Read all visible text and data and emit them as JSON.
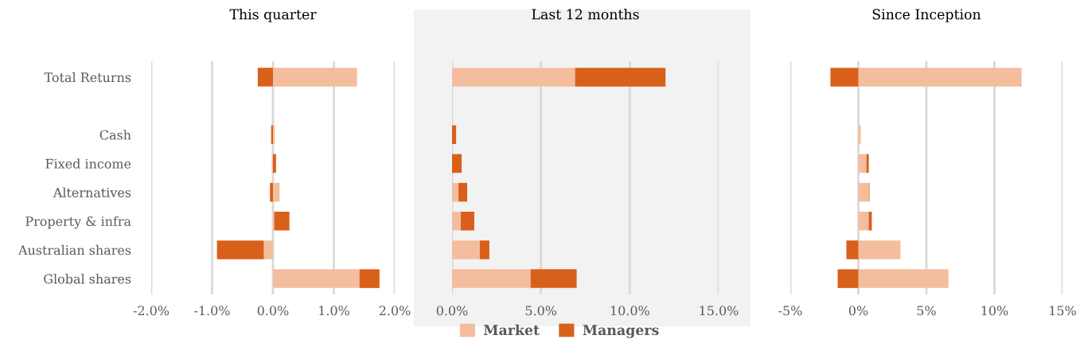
{
  "chart_data": [
    {
      "type": "bar",
      "orientation": "horizontal",
      "stacked": true,
      "title": "This quarter",
      "categories": [
        "Total Returns",
        null,
        "Cash",
        "Fixed income",
        "Alternatives",
        "Property & infra",
        "Australian shares",
        "Global shares"
      ],
      "series": [
        {
          "name": "Market",
          "color": "#f4be9e",
          "values": [
            1.38,
            null,
            0.03,
            -0.02,
            0.11,
            0.02,
            -0.15,
            1.42
          ]
        },
        {
          "name": "Managers",
          "color": "#d9601a",
          "values": [
            -0.25,
            null,
            -0.03,
            0.05,
            -0.05,
            0.25,
            -0.77,
            0.33
          ]
        }
      ],
      "xlim": [
        -2,
        2
      ],
      "xticks": [
        {
          "value": -2,
          "label": "-2.0%"
        },
        {
          "value": -1,
          "label": "-1.0%"
        },
        {
          "value": 0,
          "label": "0.0%"
        },
        {
          "value": 1,
          "label": "1.0%"
        },
        {
          "value": 2,
          "label": "2.0%"
        }
      ],
      "grid": "x",
      "legend": "bottom"
    },
    {
      "type": "bar",
      "orientation": "horizontal",
      "stacked": true,
      "title": "Last 12 months",
      "categories": [
        null,
        null,
        null,
        null,
        null,
        null,
        null,
        null
      ],
      "series": [
        {
          "color": "#f4be9e",
          "values": [
            6.92,
            null,
            null,
            null,
            0.36,
            0.49,
            1.56,
            4.42
          ]
        },
        {
          "color": "#d9601a",
          "values": [
            5.09,
            null,
            0.23,
            0.54,
            0.49,
            0.76,
            0.54,
            2.59
          ]
        }
      ],
      "xlim": [
        0,
        15
      ],
      "xticks": [
        {
          "value": 0,
          "label": "0.0%"
        },
        {
          "value": 5,
          "label": "5.0%"
        },
        {
          "value": 10,
          "label": "10.0%"
        },
        {
          "value": 15,
          "label": "15.0%"
        }
      ],
      "grid": "x",
      "tick_labels": "x"
    },
    {
      "type": "bar",
      "orientation": "horizontal",
      "stacked": true,
      "title": "Since Inception",
      "categories": [
        null,
        null,
        null,
        null,
        null,
        null,
        null,
        null
      ],
      "series": [
        {
          "color": "#f4be9e",
          "values": [
            12.0,
            null,
            0.18,
            0.59,
            0.78,
            0.76,
            3.1,
            6.62
          ]
        },
        {
          "color": "#d9601a",
          "values": [
            -2.05,
            null,
            0,
            0.18,
            0.04,
            0.23,
            -0.88,
            -1.52
          ]
        }
      ],
      "xlim": [
        -5,
        15
      ],
      "xticks": [
        {
          "value": -5,
          "label": "-5%"
        },
        {
          "value": 0,
          "label": "0%"
        },
        {
          "value": 5,
          "label": "5%"
        },
        {
          "value": 10,
          "label": "10%"
        },
        {
          "value": 15,
          "label": "15%"
        }
      ],
      "grid": "x",
      "tick_labels": "x"
    }
  ]
}
